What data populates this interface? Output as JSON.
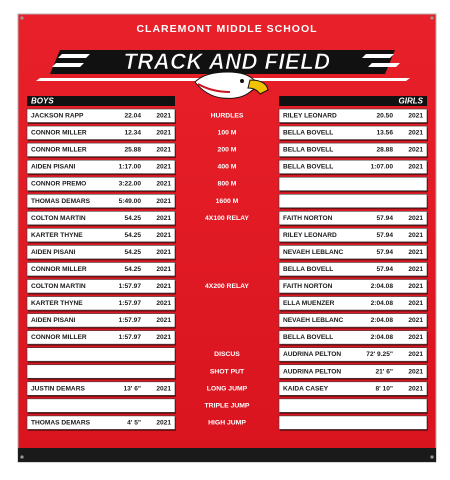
{
  "header": {
    "school": "CLAREMONT MIDDLE SCHOOL",
    "title": "TRACK AND FIELD",
    "boys_label": "BOYS",
    "girls_label": "GIRLS"
  },
  "rows": [
    {
      "event": "HURDLES",
      "boys": {
        "name": "JACKSON RAPP",
        "mark": "22.04",
        "year": "2021"
      },
      "girls": {
        "name": "RILEY LEONARD",
        "mark": "20.50",
        "year": "2021"
      }
    },
    {
      "event": "100 M",
      "boys": {
        "name": "CONNOR MILLER",
        "mark": "12.34",
        "year": "2021"
      },
      "girls": {
        "name": "BELLA BOVELL",
        "mark": "13.56",
        "year": "2021"
      }
    },
    {
      "event": "200 M",
      "boys": {
        "name": "CONNOR MILLER",
        "mark": "25.88",
        "year": "2021"
      },
      "girls": {
        "name": "BELLA BOVELL",
        "mark": "28.88",
        "year": "2021"
      }
    },
    {
      "event": "400 M",
      "boys": {
        "name": "AIDEN PISANI",
        "mark": "1:17.00",
        "year": "2021"
      },
      "girls": {
        "name": "BELLA BOVELL",
        "mark": "1:07.00",
        "year": "2021"
      }
    },
    {
      "event": "800 M",
      "boys": {
        "name": "CONNOR PREMO",
        "mark": "3:22.00",
        "year": "2021"
      },
      "girls": null
    },
    {
      "event": "1600 M",
      "boys": {
        "name": "THOMAS DEMARS",
        "mark": "5:49.00",
        "year": "2021"
      },
      "girls": null
    },
    {
      "event": "4X100 RELAY",
      "boys": {
        "name": "COLTON MARTIN",
        "mark": "54.25",
        "year": "2021"
      },
      "girls": {
        "name": "FAITH NORTON",
        "mark": "57.94",
        "year": "2021"
      }
    },
    {
      "event": null,
      "boys": {
        "name": "KARTER THYNE",
        "mark": "54.25",
        "year": "2021"
      },
      "girls": {
        "name": "RILEY LEONARD",
        "mark": "57.94",
        "year": "2021"
      }
    },
    {
      "event": null,
      "boys": {
        "name": "AIDEN PISANI",
        "mark": "54.25",
        "year": "2021"
      },
      "girls": {
        "name": "NEVAEH LEBLANC",
        "mark": "57.94",
        "year": "2021"
      }
    },
    {
      "event": null,
      "boys": {
        "name": "CONNOR MILLER",
        "mark": "54.25",
        "year": "2021"
      },
      "girls": {
        "name": "BELLA BOVELL",
        "mark": "57.94",
        "year": "2021"
      }
    },
    {
      "event": "4X200 RELAY",
      "boys": {
        "name": "COLTON MARTIN",
        "mark": "1:57.97",
        "year": "2021"
      },
      "girls": {
        "name": "FAITH NORTON",
        "mark": "2:04.08",
        "year": "2021"
      }
    },
    {
      "event": null,
      "boys": {
        "name": "KARTER THYNE",
        "mark": "1:57.97",
        "year": "2021"
      },
      "girls": {
        "name": "ELLA MUENZER",
        "mark": "2:04.08",
        "year": "2021"
      }
    },
    {
      "event": null,
      "boys": {
        "name": "AIDEN PISANI",
        "mark": "1:57.97",
        "year": "2021"
      },
      "girls": {
        "name": "NEVAEH LEBLANC",
        "mark": "2:04.08",
        "year": "2021"
      }
    },
    {
      "event": null,
      "boys": {
        "name": "CONNOR MILLER",
        "mark": "1:57.97",
        "year": "2021"
      },
      "girls": {
        "name": "BELLA BOVELL",
        "mark": "2:04.08",
        "year": "2021"
      }
    },
    {
      "event": "DISCUS",
      "boys": null,
      "girls": {
        "name": "AUDRINA PELTON",
        "mark": "72' 9.25\"",
        "year": "2021"
      }
    },
    {
      "event": "SHOT PUT",
      "boys": null,
      "girls": {
        "name": "AUDRINA PELTON",
        "mark": "21' 6\"",
        "year": "2021"
      }
    },
    {
      "event": "LONG JUMP",
      "boys": {
        "name": "JUSTIN DEMARS",
        "mark": "13' 6\"",
        "year": "2021"
      },
      "girls": {
        "name": "KAIDA CASEY",
        "mark": "8' 10\"",
        "year": "2021"
      }
    },
    {
      "event": "TRIPLE JUMP",
      "boys": null,
      "girls": null
    },
    {
      "event": "HIGH JUMP",
      "boys": {
        "name": "THOMAS DEMARS",
        "mark": "4' 5\"",
        "year": "2021"
      },
      "girls": null
    }
  ]
}
